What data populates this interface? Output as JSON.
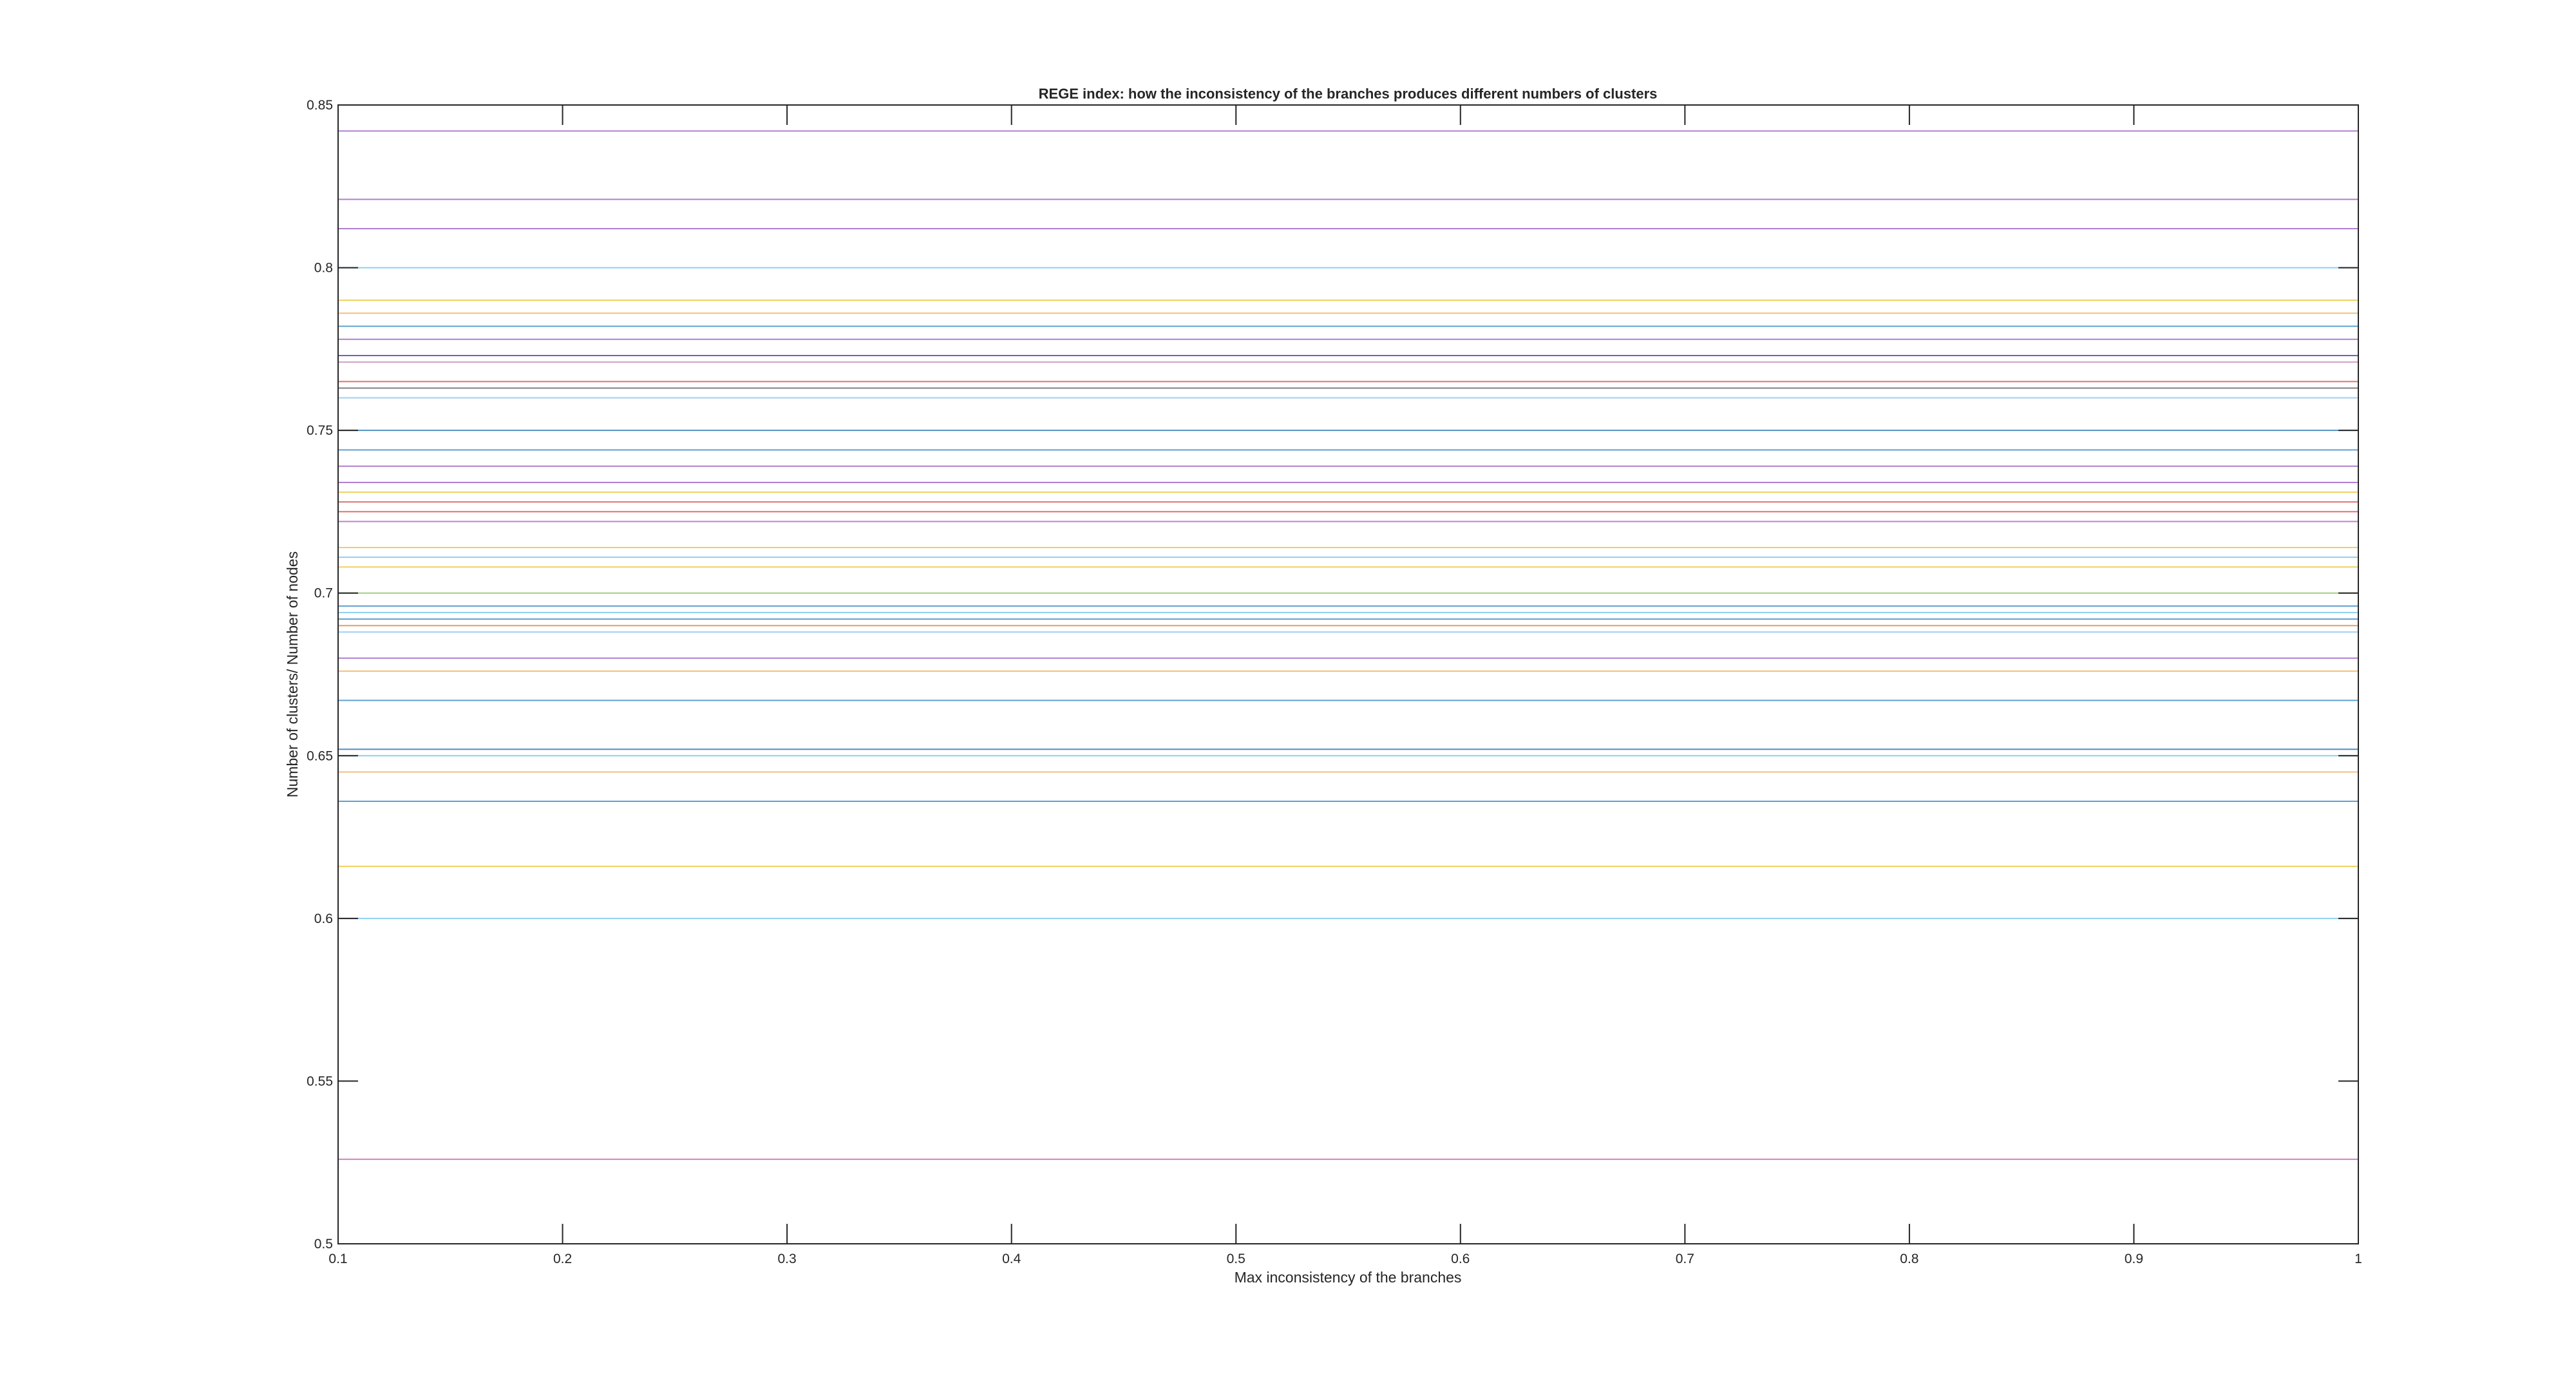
{
  "chart_data": {
    "type": "line",
    "title": "REGE index: how the inconsistency of the branches produces different numbers of clusters",
    "xlabel": "Max inconsistency of the branches",
    "ylabel": "Number of clusters/ Number of nodes",
    "xlim": [
      0.1,
      1
    ],
    "ylim": [
      0.5,
      0.85
    ],
    "xticks": [
      0.1,
      0.2,
      0.3,
      0.4,
      0.5,
      0.6,
      0.7,
      0.8,
      0.9,
      1
    ],
    "xtick_labels": [
      "0.1",
      "0.2",
      "0.3",
      "0.4",
      "0.5",
      "0.6",
      "0.7",
      "0.8",
      "0.9",
      "1"
    ],
    "yticks": [
      0.5,
      0.55,
      0.6,
      0.65,
      0.7,
      0.75,
      0.8,
      0.85
    ],
    "ytick_labels": [
      "0.5",
      "0.55",
      "0.6",
      "0.65",
      "0.7",
      "0.75",
      "0.8",
      "0.85"
    ],
    "grid": false,
    "legend": "none",
    "x": [
      0.1,
      1
    ],
    "series": [
      {
        "values": [
          0.842,
          0.842
        ],
        "color": "#b07fd0"
      },
      {
        "values": [
          0.821,
          0.821
        ],
        "color": "#b07fd0"
      },
      {
        "values": [
          0.812,
          0.812
        ],
        "color": "#b07fd0"
      },
      {
        "values": [
          0.8,
          0.8
        ],
        "color": "#8fd0f0"
      },
      {
        "values": [
          0.79,
          0.79
        ],
        "color": "#f0d060"
      },
      {
        "values": [
          0.786,
          0.786
        ],
        "color": "#f0c080"
      },
      {
        "values": [
          0.782,
          0.782
        ],
        "color": "#60a0d0"
      },
      {
        "values": [
          0.778,
          0.778
        ],
        "color": "#b07fd0"
      },
      {
        "values": [
          0.773,
          0.773
        ],
        "color": "#7060c0"
      },
      {
        "values": [
          0.771,
          0.771
        ],
        "color": "#d0a0c0"
      },
      {
        "values": [
          0.765,
          0.765
        ],
        "color": "#e07070"
      },
      {
        "values": [
          0.763,
          0.763
        ],
        "color": "#808080"
      },
      {
        "values": [
          0.76,
          0.76
        ],
        "color": "#a0d0f0"
      },
      {
        "values": [
          0.75,
          0.75
        ],
        "color": "#5090c0"
      },
      {
        "values": [
          0.744,
          0.744
        ],
        "color": "#60a0d0"
      },
      {
        "values": [
          0.739,
          0.739
        ],
        "color": "#b07fd0"
      },
      {
        "values": [
          0.734,
          0.734
        ],
        "color": "#b07fd0"
      },
      {
        "values": [
          0.731,
          0.731
        ],
        "color": "#f0d060"
      },
      {
        "values": [
          0.728,
          0.728
        ],
        "color": "#e07070"
      },
      {
        "values": [
          0.725,
          0.725
        ],
        "color": "#e07070"
      },
      {
        "values": [
          0.722,
          0.722
        ],
        "color": "#c080d0"
      },
      {
        "values": [
          0.714,
          0.714
        ],
        "color": "#f0d060"
      },
      {
        "values": [
          0.711,
          0.711
        ],
        "color": "#8fd0f0"
      },
      {
        "values": [
          0.708,
          0.708
        ],
        "color": "#f0d060"
      },
      {
        "values": [
          0.7,
          0.7
        ],
        "color": "#a0d080"
      },
      {
        "values": [
          0.696,
          0.696
        ],
        "color": "#60a0d0"
      },
      {
        "values": [
          0.694,
          0.694
        ],
        "color": "#8fd0f0"
      },
      {
        "values": [
          0.692,
          0.692
        ],
        "color": "#60a0d0"
      },
      {
        "values": [
          0.69,
          0.69
        ],
        "color": "#e0a060"
      },
      {
        "values": [
          0.688,
          0.688
        ],
        "color": "#a0d0f0"
      },
      {
        "values": [
          0.68,
          0.68
        ],
        "color": "#b07fd0"
      },
      {
        "values": [
          0.676,
          0.676
        ],
        "color": "#f0c080"
      },
      {
        "values": [
          0.667,
          0.667
        ],
        "color": "#60a0d0"
      },
      {
        "values": [
          0.652,
          0.652
        ],
        "color": "#5090c0"
      },
      {
        "values": [
          0.65,
          0.65
        ],
        "color": "#8fd0f0"
      },
      {
        "values": [
          0.645,
          0.645
        ],
        "color": "#f0c080"
      },
      {
        "values": [
          0.636,
          0.636
        ],
        "color": "#60a0d0"
      },
      {
        "values": [
          0.616,
          0.616
        ],
        "color": "#f0d060"
      },
      {
        "values": [
          0.6,
          0.6
        ],
        "color": "#8fd0f0"
      },
      {
        "values": [
          0.526,
          0.526
        ],
        "color": "#d080c0"
      }
    ]
  }
}
